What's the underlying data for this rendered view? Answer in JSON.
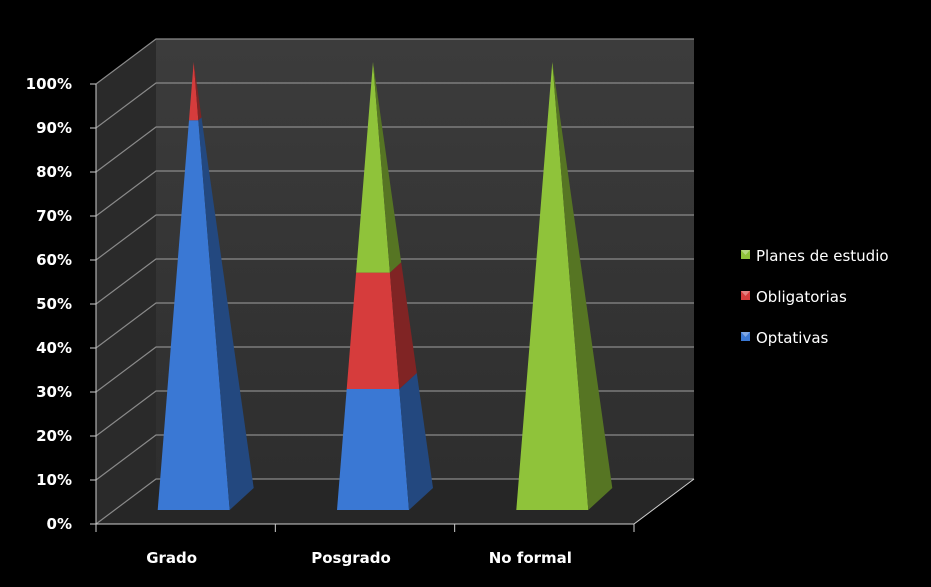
{
  "chart_data": {
    "type": "bar",
    "subtype": "stacked-100-3d-pyramid",
    "title": "",
    "xlabel": "",
    "ylabel": "",
    "ylim": [
      0,
      100
    ],
    "y_ticks": [
      "0%",
      "10%",
      "20%",
      "30%",
      "40%",
      "50%",
      "60%",
      "70%",
      "80%",
      "90%",
      "100%"
    ],
    "categories": [
      "Grado",
      "Posgrado",
      "No formal"
    ],
    "series": [
      {
        "name": "Optativas",
        "color": "#3a78d4",
        "values": [
          87,
          27,
          0
        ]
      },
      {
        "name": "Obligatorias",
        "color": "#d63c3c",
        "values": [
          13,
          26,
          0
        ]
      },
      {
        "name": "Planes de estudio",
        "color": "#8fc33a",
        "values": [
          0,
          47,
          100
        ]
      }
    ],
    "legend_order": [
      "Planes de estudio",
      "Obligatorias",
      "Optativas"
    ],
    "legend_position": "right",
    "grid": true,
    "background": "#000000",
    "wall_color": "#3a3a3a"
  }
}
